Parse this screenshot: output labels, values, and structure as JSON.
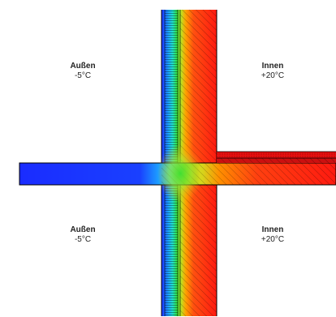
{
  "zones": {
    "outside_top": {
      "name": "Außen",
      "temp": "-5°C"
    },
    "inside_top": {
      "name": "Innen",
      "temp": "+20°C"
    },
    "outside_bottom": {
      "name": "Außen",
      "temp": "-5°C"
    },
    "inside_bottom": {
      "name": "Innen",
      "temp": "+20°C"
    }
  },
  "colors": {
    "cold": "#1030ff",
    "mid": "#28e000",
    "warm": "#ff1010",
    "outline": "#000000"
  }
}
